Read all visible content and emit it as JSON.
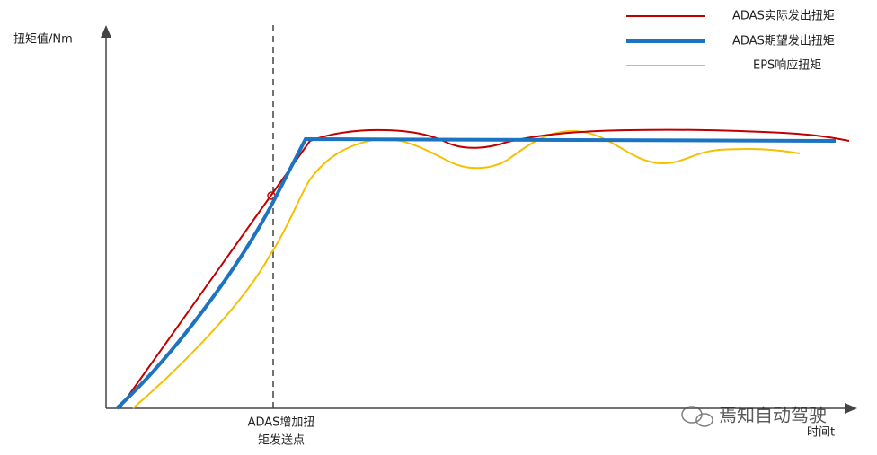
{
  "y_axis_label": "扭矩值/Nm",
  "x_axis_label": "时间t",
  "annotation": [
    "ADAS增加扭",
    "矩发送点"
  ],
  "legend": [
    "ADAS实际发出扭矩",
    "ADAS期望发出扭矩",
    "EPS响应扭矩"
  ],
  "watermark": "焉知自动驾驶"
}
